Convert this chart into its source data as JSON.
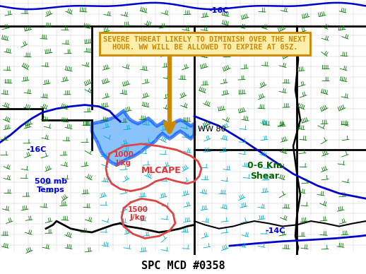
{
  "title": "SPC MCD #0358",
  "title_fontsize": 11,
  "title_color": "#000000",
  "bg_color": "#ffffff",
  "map_bg": "#ffffff",
  "fig_width": 5.18,
  "fig_height": 3.88,
  "dpi": 100,
  "annotation_text": "SEVERE THREAT LIKELY TO DIMINISH OVER THE NEXT\nHOUR. WW WILL BE ALLOWED TO EXPIRE AT 05Z.",
  "annotation_color": "#cc8800",
  "annotation_bg": "#ffeeaa",
  "annotation_border": "#cc8800",
  "arrow_color": "#cc8800",
  "ww_label": "WW 80",
  "ww_label_color": "#000000",
  "label_500mb_text": "500 mb\nTemps",
  "label_500mb_color": "#0000dd",
  "label_mlcape_text": "MLCAPE",
  "label_mlcape_color": "#dd3333",
  "label_shear_text": "0-6 Km\nShear",
  "label_shear_color": "#006600",
  "label_16c_top_text": "-16C",
  "label_16c_top_color": "#0000dd",
  "label_16c_left_text": "-16C",
  "label_16c_left_color": "#0000dd",
  "label_14c_text": "-14C",
  "label_14c_color": "#0000dd",
  "label_1000_text": "1000\nJ/kg",
  "label_1000_color": "#dd3333",
  "label_1500_text": "1500\nJ/kg",
  "label_1500_color": "#dd3333",
  "blue_line_color": "#0000cc",
  "watch_fill_color": "#55aaff",
  "watch_line_color": "#0055ff",
  "cape_line_color": "#dd4444",
  "green_barb_color": "#007700",
  "cyan_barb_color": "#00aacc",
  "county_line_color": "#bbbbbb",
  "state_line_color": "#000000"
}
